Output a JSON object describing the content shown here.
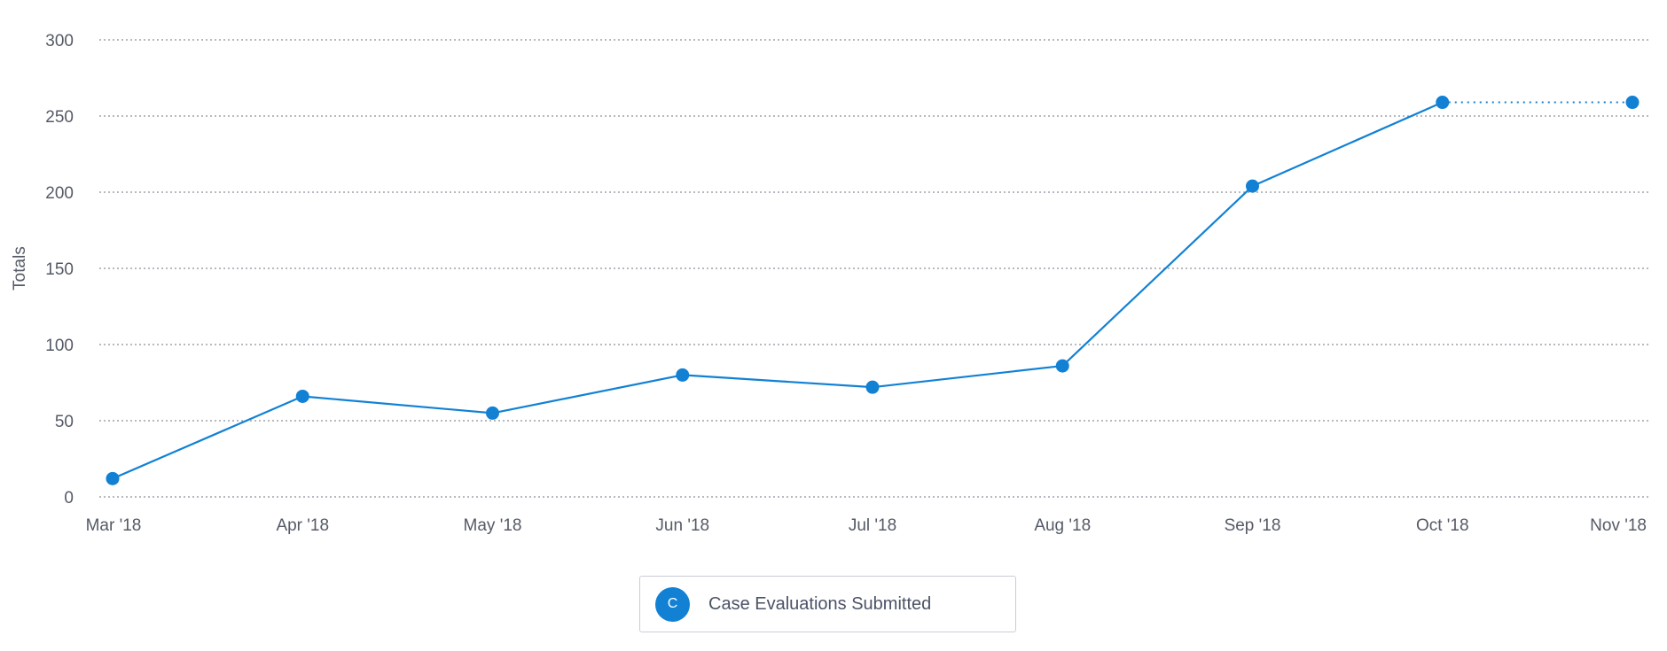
{
  "chart_data": {
    "type": "line",
    "categories": [
      "Mar '18",
      "Apr '18",
      "May '18",
      "Jun '18",
      "Jul '18",
      "Aug '18",
      "Sep '18",
      "Oct '18",
      "Nov '18"
    ],
    "series": [
      {
        "name": "Case Evaluations Submitted",
        "values": [
          12,
          66,
          55,
          80,
          72,
          86,
          204,
          259,
          259
        ],
        "projected_from_index": 7
      }
    ],
    "xlabel": "",
    "ylabel": "Totals",
    "ylim": [
      0,
      300
    ],
    "yticks": [
      0,
      50,
      100,
      150,
      200,
      250,
      300
    ],
    "grid": true,
    "legend_position": "bottom-center",
    "colors": {
      "series": "#1281d4",
      "grid": "#8a8f99",
      "text": "#555a66"
    }
  },
  "legend": {
    "items": [
      {
        "badge": "C",
        "label": "Case Evaluations Submitted"
      }
    ]
  }
}
